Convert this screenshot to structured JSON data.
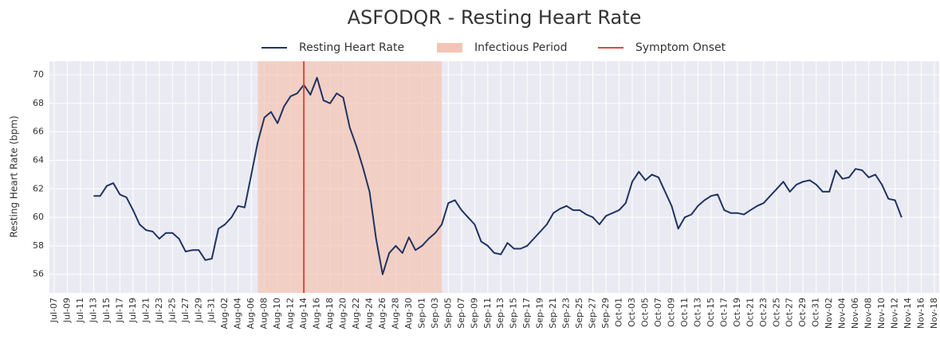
{
  "chart_data": {
    "type": "line",
    "title": "ASFODQR - Resting Heart Rate",
    "ylabel": "Resting Heart Rate (bpm)",
    "categories": [
      "Jul-07",
      "Jul-08",
      "Jul-09",
      "Jul-10",
      "Jul-11",
      "Jul-12",
      "Jul-13",
      "Jul-14",
      "Jul-15",
      "Jul-16",
      "Jul-17",
      "Jul-18",
      "Jul-19",
      "Jul-20",
      "Jul-21",
      "Jul-22",
      "Jul-23",
      "Jul-24",
      "Jul-25",
      "Jul-26",
      "Jul-27",
      "Jul-28",
      "Jul-29",
      "Jul-30",
      "Jul-31",
      "Aug-01",
      "Aug-02",
      "Aug-03",
      "Aug-04",
      "Aug-05",
      "Aug-06",
      "Aug-07",
      "Aug-08",
      "Aug-09",
      "Aug-10",
      "Aug-11",
      "Aug-12",
      "Aug-13",
      "Aug-14",
      "Aug-15",
      "Aug-16",
      "Aug-17",
      "Aug-18",
      "Aug-19",
      "Aug-20",
      "Aug-21",
      "Aug-22",
      "Aug-23",
      "Aug-24",
      "Aug-25",
      "Aug-26",
      "Aug-27",
      "Aug-28",
      "Aug-29",
      "Aug-30",
      "Aug-31",
      "Sep-01",
      "Sep-02",
      "Sep-03",
      "Sep-04",
      "Sep-05",
      "Sep-06",
      "Sep-07",
      "Sep-08",
      "Sep-09",
      "Sep-10",
      "Sep-11",
      "Sep-12",
      "Sep-13",
      "Sep-14",
      "Sep-15",
      "Sep-16",
      "Sep-17",
      "Sep-18",
      "Sep-19",
      "Sep-20",
      "Sep-21",
      "Sep-22",
      "Sep-23",
      "Sep-24",
      "Sep-25",
      "Sep-26",
      "Sep-27",
      "Sep-28",
      "Sep-29",
      "Sep-30",
      "Oct-01",
      "Oct-02",
      "Oct-03",
      "Oct-04",
      "Oct-05",
      "Oct-06",
      "Oct-07",
      "Oct-08",
      "Oct-09",
      "Oct-10",
      "Oct-11",
      "Oct-12",
      "Oct-13",
      "Oct-14",
      "Oct-15",
      "Oct-16",
      "Oct-17",
      "Oct-18",
      "Oct-19",
      "Oct-20",
      "Oct-21",
      "Oct-22",
      "Oct-23",
      "Oct-24",
      "Oct-25",
      "Oct-26",
      "Oct-27",
      "Oct-28",
      "Oct-29",
      "Oct-30",
      "Oct-31",
      "Nov-01",
      "Nov-02",
      "Nov-03",
      "Nov-04",
      "Nov-05",
      "Nov-06",
      "Nov-07",
      "Nov-08",
      "Nov-09",
      "Nov-10",
      "Nov-11",
      "Nov-12",
      "Nov-13",
      "Nov-14",
      "Nov-15",
      "Nov-16",
      "Nov-17",
      "Nov-18"
    ],
    "series": [
      {
        "name": "Resting Heart Rate",
        "color": "#1f3461",
        "values": [
          null,
          null,
          null,
          null,
          null,
          null,
          61.5,
          61.5,
          62.2,
          62.4,
          61.6,
          61.4,
          60.5,
          59.5,
          59.1,
          59.0,
          58.5,
          58.9,
          58.9,
          58.5,
          57.6,
          57.7,
          57.7,
          57.0,
          57.1,
          59.2,
          59.5,
          60.0,
          60.8,
          60.7,
          63.0,
          65.3,
          67.0,
          67.4,
          66.6,
          67.8,
          68.5,
          68.7,
          69.3,
          68.6,
          69.8,
          68.2,
          68.0,
          68.7,
          68.4,
          66.3,
          65.0,
          63.5,
          61.8,
          58.5,
          56.0,
          57.5,
          58.0,
          57.5,
          58.6,
          57.7,
          58.0,
          58.5,
          58.9,
          59.5,
          61.0,
          61.2,
          60.5,
          60.0,
          59.5,
          58.3,
          58.0,
          57.5,
          57.4,
          58.2,
          57.8,
          57.8,
          58.0,
          58.5,
          59.0,
          59.5,
          60.3,
          60.6,
          60.8,
          60.5,
          60.5,
          60.2,
          60.0,
          59.5,
          60.1,
          60.3,
          60.5,
          61.0,
          62.5,
          63.2,
          62.6,
          63.0,
          62.8,
          61.8,
          60.8,
          59.2,
          60.0,
          60.2,
          60.8,
          61.2,
          61.5,
          61.6,
          60.5,
          60.3,
          60.3,
          60.2,
          60.5,
          60.8,
          61.0,
          61.5,
          62.0,
          62.5,
          61.8,
          62.3,
          62.5,
          62.6,
          62.3,
          61.8,
          61.8,
          63.3,
          62.7,
          62.8,
          63.4,
          63.3,
          62.8,
          63.0,
          62.3,
          61.3,
          61.2,
          60.0,
          null,
          null,
          null,
          null,
          null
        ]
      }
    ],
    "spans": [
      {
        "name": "Infectious Period",
        "start": "Aug-07",
        "end": "Sep-04",
        "color": "#f4c5b6"
      }
    ],
    "vlines": [
      {
        "name": "Symptom Onset",
        "x": "Aug-14",
        "color": "#e04a33"
      }
    ],
    "ylim": [
      54.7,
      70.95
    ],
    "yticks": [
      56,
      58,
      60,
      62,
      64,
      66,
      68,
      70
    ],
    "grid": true
  }
}
